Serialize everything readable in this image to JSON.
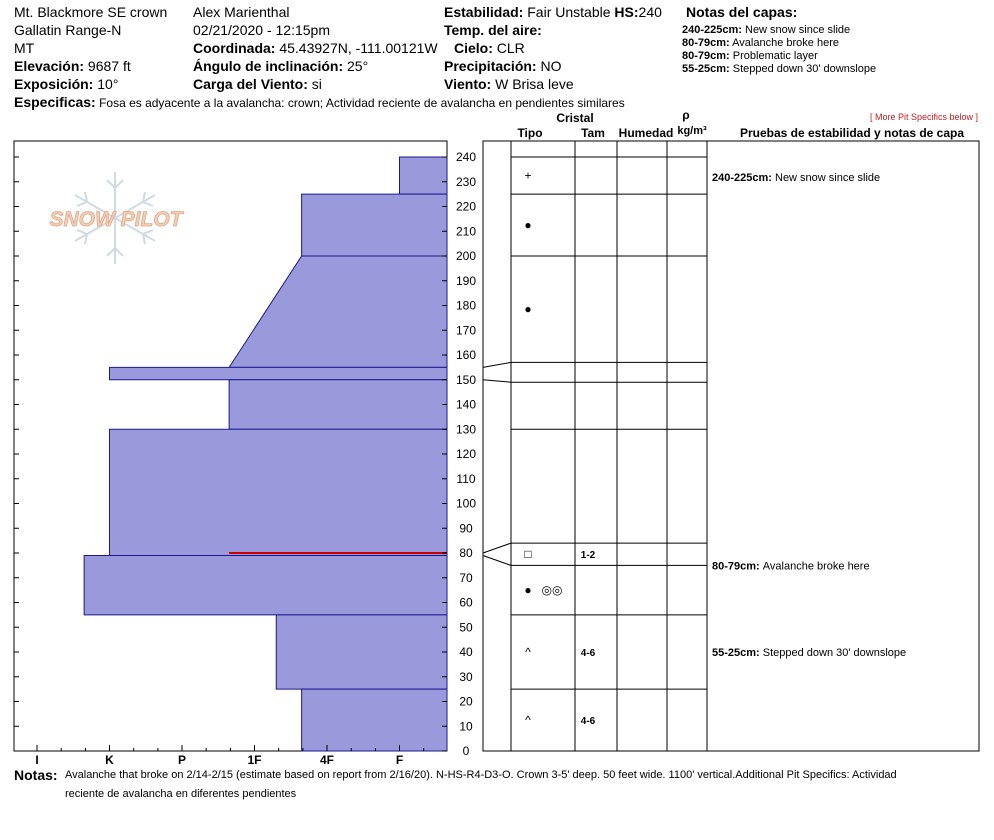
{
  "header": {
    "location": "Mt. Blackmore SE crown",
    "range": "Gallatin Range-N",
    "state": "MT",
    "elevation_label": "Elevación:",
    "elevation_value": "9687 ft",
    "aspect_label": "Exposición:",
    "aspect_value": "10°",
    "observer": "Alex Marienthal",
    "datetime": "02/21/2020 - 12:15pm",
    "coord_label": "Coordinada:",
    "coord_value": "45.43927N, -111.00121W",
    "incline_label": "Ángulo de inclinación:",
    "incline_value": "25°",
    "wind_load_label": "Carga del Viento:",
    "wind_load_value": "si",
    "stability_label": "Estabilidad:",
    "stability_value": "Fair Unstable",
    "hs_label": "HS:",
    "hs_value": "240",
    "air_temp_label": "Temp. del aire:",
    "sky_label": "Cielo:",
    "sky_value": "CLR",
    "precip_label": "Precipitación:",
    "precip_value": "NO",
    "wind_label": "Viento:",
    "wind_value": "W Brisa leve",
    "specifics_label": "Especificas:",
    "specifics_value": "Fosa es adyacente a la avalancha: crown;  Actividad reciente de avalancha en pendientes similares",
    "layer_notes_title": "Notas del capas:",
    "layer_notes": [
      {
        "range": "240-225cm:",
        "text": "New snow since slide"
      },
      {
        "range": "80-79cm:",
        "text": "Avalanche broke here"
      },
      {
        "range": "80-79cm:",
        "text": "Problematic layer"
      },
      {
        "range": "55-25cm:",
        "text": "Stepped down 30' downslope"
      }
    ],
    "more_specifics": "[ More Pit Specifics below ]"
  },
  "logo_text": "SNOW PILOT",
  "columns": {
    "crystal": "Cristal",
    "type": "Tipo",
    "size": "Tam",
    "moisture": "Humedad",
    "rho": "ρ",
    "density_unit": "kg/m³",
    "tests": "Pruebas de estabilidad y notas de capa"
  },
  "side_notes": [
    {
      "range": "240-225cm:",
      "text": "New snow since slide",
      "y": 232
    },
    {
      "range": "80-79cm:",
      "text": "Avalanche broke here",
      "y": 75
    },
    {
      "range": "55-25cm:",
      "text": "Stepped down 30' downslope",
      "y": 40
    }
  ],
  "layer_rows": [
    {
      "top": 240,
      "bottom": 225,
      "grain": "+",
      "size": ""
    },
    {
      "top": 225,
      "bottom": 200,
      "grain": "●",
      "size": ""
    },
    {
      "top": 200,
      "bottom": 157,
      "grain": "●",
      "size": ""
    },
    {
      "top": 157,
      "bottom": 149,
      "grain": "",
      "size": ""
    },
    {
      "top": 149,
      "bottom": 130,
      "grain": "",
      "size": ""
    },
    {
      "top": 130,
      "bottom": 84,
      "grain": "",
      "size": ""
    },
    {
      "top": 84,
      "bottom": 75,
      "grain": "□",
      "size": "1-2"
    },
    {
      "top": 75,
      "bottom": 55,
      "grain": "● ◎◎",
      "size": ""
    },
    {
      "top": 55,
      "bottom": 25,
      "grain": "^",
      "size": "4-6"
    },
    {
      "top": 25,
      "bottom": 0,
      "grain": "^",
      "size": "4-6"
    }
  ],
  "chart_data": {
    "type": "bar",
    "title": "",
    "xlabel": "",
    "ylabel": "",
    "hardness_ticks": [
      "I",
      "K",
      "P",
      "1F",
      "4F",
      "F"
    ],
    "ylim": [
      0,
      240
    ],
    "yticks": [
      0,
      10,
      20,
      30,
      40,
      50,
      60,
      70,
      80,
      90,
      100,
      110,
      120,
      130,
      140,
      150,
      160,
      170,
      180,
      190,
      200,
      210,
      220,
      230,
      240
    ],
    "fill_color": "#9999db",
    "edge_color": "#1a1a8c",
    "critical_layer_color": "#cc0000",
    "critical_layer_depth": 80,
    "layers": [
      {
        "top": 240,
        "bottom": 225,
        "hardness": "F"
      },
      {
        "top": 225,
        "bottom": 200,
        "hardness": "4F-"
      },
      {
        "top": 200,
        "bottom": 155,
        "hardness_top": "4F-",
        "hardness_bottom": "1F-"
      },
      {
        "top": 155,
        "bottom": 150,
        "hardness": "K"
      },
      {
        "top": 150,
        "bottom": 130,
        "hardness": "1F-"
      },
      {
        "top": 130,
        "bottom": 79,
        "hardness": "K"
      },
      {
        "top": 79,
        "bottom": 55,
        "hardness": "K+"
      },
      {
        "top": 55,
        "bottom": 25,
        "hardness": "1F+"
      },
      {
        "top": 25,
        "bottom": 0,
        "hardness": "4F-"
      }
    ],
    "hardness_index": {
      "I": 6,
      "K": 5,
      "K+": 5.35,
      "P": 4,
      "1F": 3,
      "1F-": 3.35,
      "1F+": 2.7,
      "4F": 2,
      "4F-": 2.35,
      "F": 1
    },
    "layer_boundaries": [
      240,
      225,
      200,
      157,
      149,
      130,
      84,
      75,
      55,
      25,
      0
    ],
    "depth_connectors": [
      [
        155,
        157
      ],
      [
        150,
        149
      ],
      [
        80,
        84
      ],
      [
        79,
        75
      ]
    ]
  },
  "notes": {
    "label": "Notas:",
    "line1": "Avalanche that broke on 2/14-2/15 (estimate based on report from 2/16/20). N-HS-R4-D3-O. Crown 3-5' deep. 50 feet wide. 1100' vertical.Additional Pit Specifics: Actividad",
    "line2": "reciente de avalancha en diferentes pendientes"
  }
}
